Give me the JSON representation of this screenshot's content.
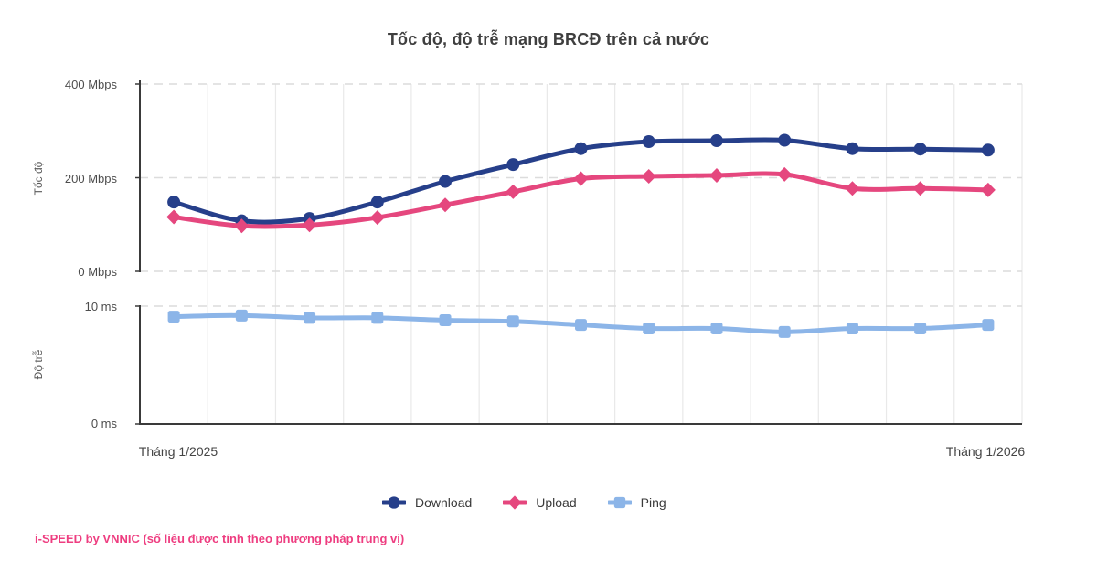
{
  "title": "Tốc độ, độ trễ mạng BRCĐ trên cả nước",
  "footer": "i-SPEED by VNNIC (số liệu được tính theo phương pháp trung vị)",
  "x_axis": {
    "first_label": "Tháng 1/2025",
    "last_label": "Tháng 1/2026",
    "num_points": 13
  },
  "colors": {
    "download": "#263f8a",
    "upload": "#e5477e",
    "ping": "#8cb5e8",
    "axis": "#3a3a3a",
    "grid_vertical": "#e9e9e9",
    "grid_dashed": "#dcdcdc",
    "footer_text": "#ee3d80"
  },
  "chart_data": [
    {
      "type": "line",
      "ylabel": "Tốc độ",
      "ylim": [
        0,
        400
      ],
      "grid": "horizontal dashed at ticks, vertical solid between points",
      "legend_position": "bottom",
      "yticks": [
        {
          "value": 400,
          "label": "400 Mbps"
        },
        {
          "value": 200,
          "label": "200 Mbps"
        },
        {
          "value": 0,
          "label": "0 Mbps"
        }
      ],
      "series": [
        {
          "name": "Download",
          "color": "#263f8a",
          "marker": "circle",
          "values": [
            148,
            108,
            113,
            148,
            192,
            228,
            262,
            277,
            279,
            280,
            262,
            261,
            259
          ]
        },
        {
          "name": "Upload",
          "color": "#e5477e",
          "marker": "diamond",
          "values": [
            116,
            97,
            99,
            115,
            142,
            170,
            198,
            203,
            205,
            207,
            177,
            177,
            174
          ]
        }
      ]
    },
    {
      "type": "line",
      "ylabel": "Độ trễ",
      "ylim": [
        0,
        10
      ],
      "grid": "horizontal dashed at ticks, vertical solid between points",
      "legend_position": "bottom",
      "yticks": [
        {
          "value": 10,
          "label": "10 ms"
        },
        {
          "value": 0,
          "label": "0 ms"
        }
      ],
      "series": [
        {
          "name": "Ping",
          "color": "#8cb5e8",
          "marker": "square",
          "values": [
            9.1,
            9.2,
            9.0,
            9.0,
            8.8,
            8.7,
            8.4,
            8.1,
            8.1,
            7.8,
            8.1,
            8.1,
            8.4
          ]
        }
      ]
    }
  ]
}
